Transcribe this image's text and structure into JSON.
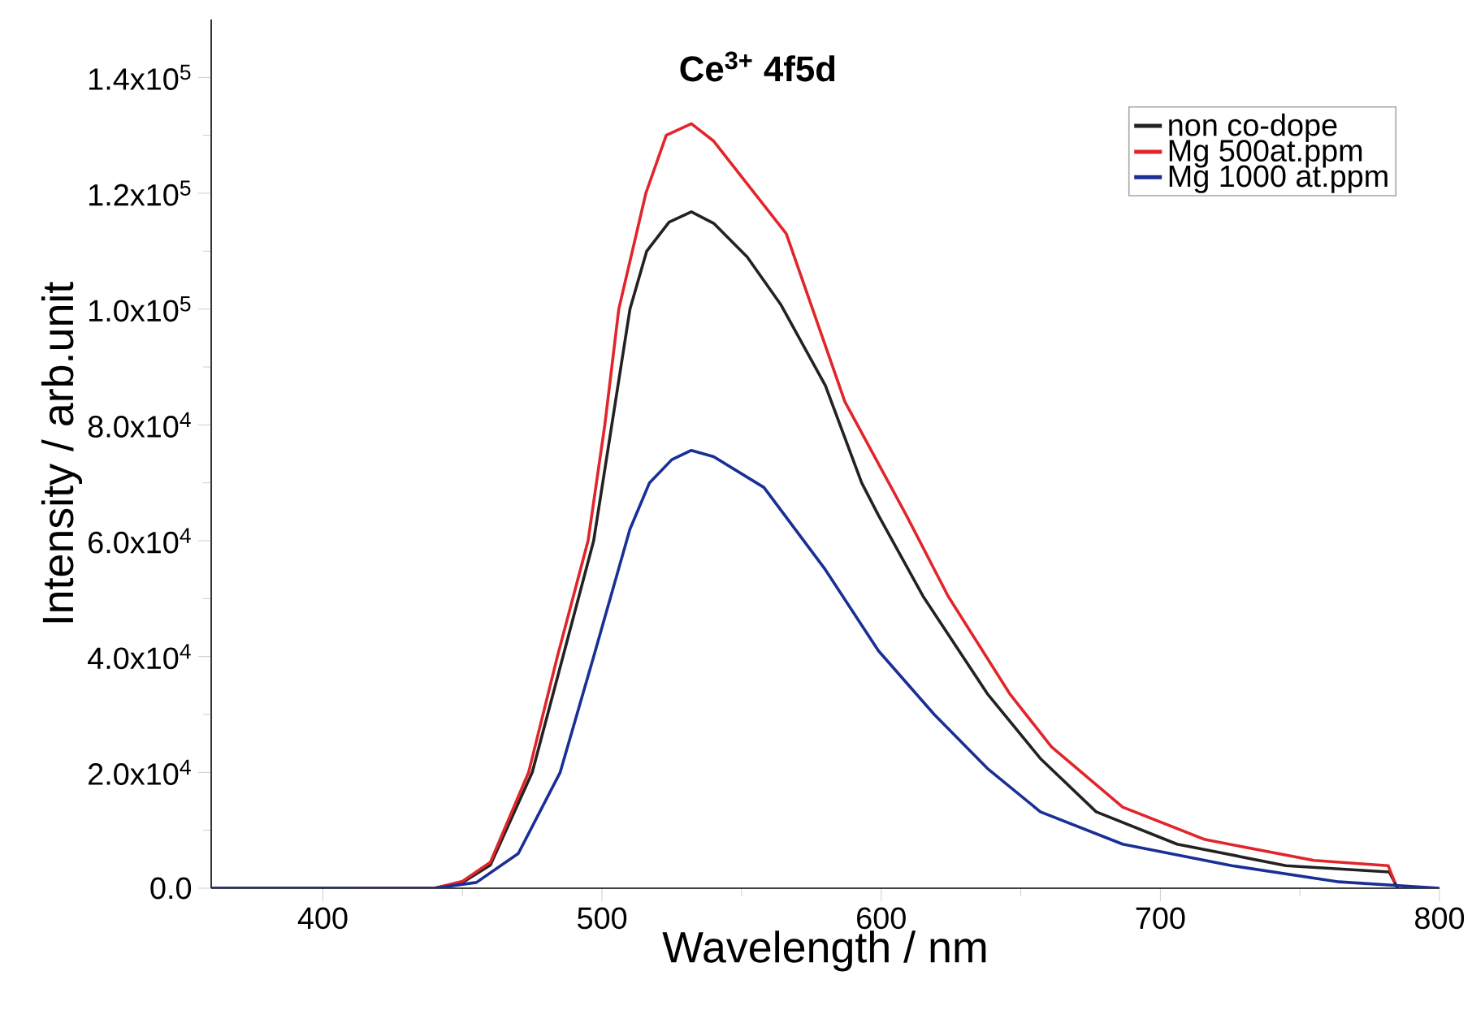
{
  "chart_data": {
    "type": "line",
    "title": "Ce$^{3+}$ 4f5d",
    "xlabel": "Wavelength / nm",
    "ylabel": "Intensity / arb.unit",
    "xlim": [
      360,
      800
    ],
    "ylim": [
      0,
      150000
    ],
    "xticks": [
      400,
      500,
      600,
      700,
      800
    ],
    "yticks": [
      {
        "value": 0,
        "label": "0.0"
      },
      {
        "value": 20000,
        "label": "2.0x10$^{4}$"
      },
      {
        "value": 40000,
        "label": "4.0x10$^{4}$"
      },
      {
        "value": 60000,
        "label": "6.0x10$^{4}$"
      },
      {
        "value": 80000,
        "label": "8.0x10$^{4}$"
      },
      {
        "value": 100000,
        "label": "1.0x10$^{5}$"
      },
      {
        "value": 120000,
        "label": "1.2x10$^{5}$"
      },
      {
        "value": 140000,
        "label": "1.4x10$^{5}$"
      }
    ],
    "legend": "top right",
    "grid": false,
    "marker": "none",
    "line_style": "solid",
    "series": [
      {
        "name": "non  co-dope",
        "color": "#222222",
        "x": [
          360,
          440,
          450,
          460,
          475,
          486,
          497,
          503.5,
          510,
          516,
          524,
          532,
          540,
          552,
          564,
          580,
          593,
          599,
          615,
          638,
          657,
          677,
          706,
          745,
          782,
          785
        ],
        "values": [
          0,
          0,
          1000,
          4000,
          20000,
          40000,
          60000,
          80000,
          100000,
          110000,
          115000,
          116800,
          114800,
          109000,
          100800,
          86800,
          70000,
          64400,
          50400,
          33600,
          22400,
          13200,
          7600,
          3900,
          2800,
          0
        ]
      },
      {
        "name": "Mg 500at.ppm",
        "color": "#e0262a",
        "x": [
          413,
          440,
          450,
          460,
          473.7,
          484,
          495,
          501,
          506,
          515.7,
          523,
          532,
          540,
          566,
          587,
          609,
          624,
          646,
          661,
          686.5,
          716,
          755,
          781.6,
          784
        ],
        "values": [
          0,
          0,
          1200,
          4500,
          20000,
          40000,
          60000,
          80000,
          100000,
          120000,
          130000,
          132000,
          129000,
          113000,
          84000,
          64400,
          50400,
          33600,
          24400,
          14000,
          8400,
          4800,
          3900,
          1000
        ]
      },
      {
        "name": "Mg 1000 at.ppm",
        "color": "#1a2f95",
        "x": [
          360,
          440,
          455,
          470,
          485,
          497,
          510,
          517,
          525,
          532,
          540,
          558,
          580,
          599,
          619,
          638,
          657,
          686.5,
          725.6,
          764,
          800
        ],
        "values": [
          0,
          0,
          1000,
          6000,
          20000,
          40000,
          62000,
          70000,
          74000,
          75600,
          74500,
          69200,
          55000,
          41000,
          30000,
          20700,
          13200,
          7600,
          3900,
          1100,
          0
        ]
      }
    ]
  }
}
